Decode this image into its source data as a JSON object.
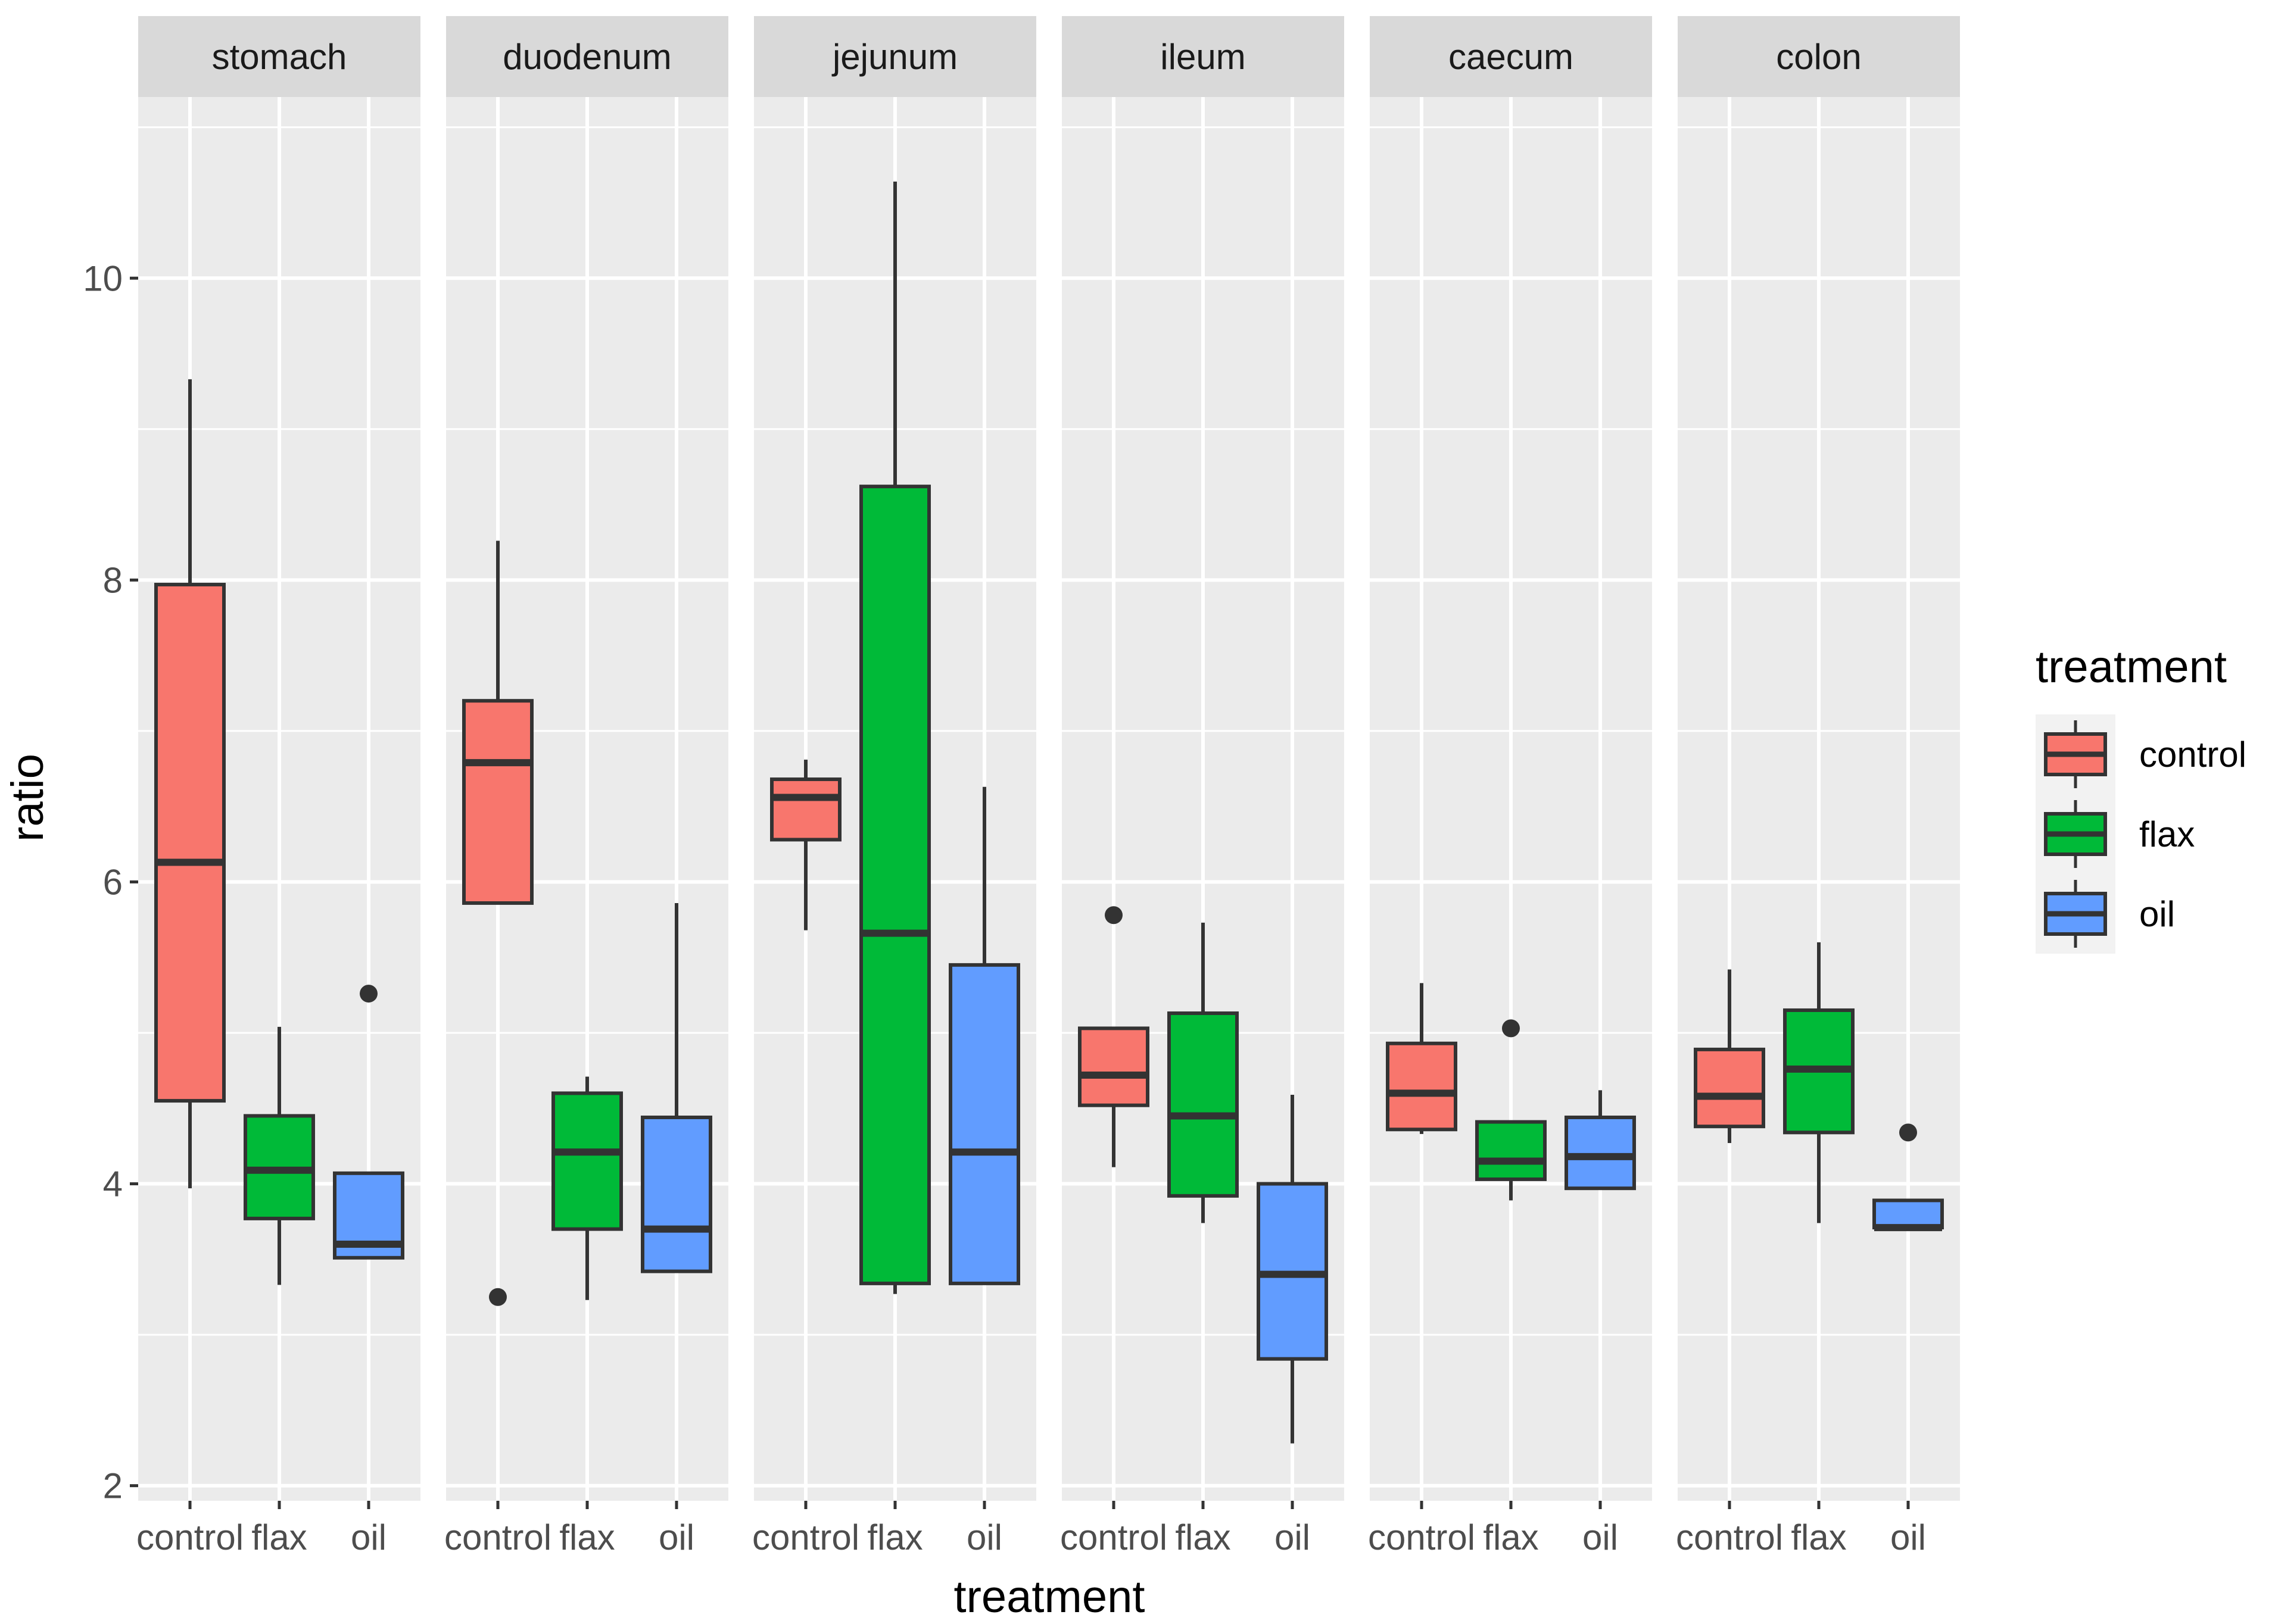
{
  "chart_data": {
    "type": "boxplot",
    "xlabel": "treatment",
    "ylabel": "ratio",
    "ylim": [
      1.9,
      11.2
    ],
    "yticks": [
      2,
      4,
      6,
      8,
      10
    ],
    "grid": true,
    "legend": {
      "title": "treatment",
      "position": "right"
    },
    "categories": [
      "control",
      "flax",
      "oil"
    ],
    "colors": {
      "control": "#F8766D",
      "flax": "#00BA38",
      "oil": "#619CFF"
    },
    "facets": [
      {
        "name": "stomach",
        "boxes": [
          {
            "group": "control",
            "lower": 3.97,
            "q1": 4.55,
            "median": 6.13,
            "q3": 7.97,
            "upper": 9.33,
            "outliers": []
          },
          {
            "group": "flax",
            "lower": 3.33,
            "q1": 3.77,
            "median": 4.09,
            "q3": 4.45,
            "upper": 5.04,
            "outliers": []
          },
          {
            "group": "oil",
            "lower": 3.51,
            "q1": 3.51,
            "median": 3.6,
            "q3": 4.07,
            "upper": 4.07,
            "outliers": [
              5.26
            ]
          }
        ]
      },
      {
        "name": "duodenum",
        "boxes": [
          {
            "group": "control",
            "lower": 5.86,
            "q1": 5.86,
            "median": 6.79,
            "q3": 7.2,
            "upper": 8.26,
            "outliers": [
              3.25
            ]
          },
          {
            "group": "flax",
            "lower": 3.23,
            "q1": 3.7,
            "median": 4.21,
            "q3": 4.6,
            "upper": 4.71,
            "outliers": []
          },
          {
            "group": "oil",
            "lower": 3.42,
            "q1": 3.42,
            "median": 3.7,
            "q3": 4.44,
            "upper": 5.86,
            "outliers": []
          }
        ]
      },
      {
        "name": "jejunum",
        "boxes": [
          {
            "group": "control",
            "lower": 5.68,
            "q1": 6.28,
            "median": 6.56,
            "q3": 6.68,
            "upper": 6.81,
            "outliers": []
          },
          {
            "group": "flax",
            "lower": 3.27,
            "q1": 3.34,
            "median": 5.66,
            "q3": 8.62,
            "upper": 10.64,
            "outliers": []
          },
          {
            "group": "oil",
            "lower": 3.34,
            "q1": 3.34,
            "median": 4.21,
            "q3": 5.45,
            "upper": 6.63,
            "outliers": []
          }
        ]
      },
      {
        "name": "ileum",
        "boxes": [
          {
            "group": "control",
            "lower": 4.11,
            "q1": 4.52,
            "median": 4.72,
            "q3": 5.03,
            "upper": 5.03,
            "outliers": [
              5.78
            ]
          },
          {
            "group": "flax",
            "lower": 3.74,
            "q1": 3.92,
            "median": 4.45,
            "q3": 5.13,
            "upper": 5.73,
            "outliers": []
          },
          {
            "group": "oil",
            "lower": 2.28,
            "q1": 2.84,
            "median": 3.4,
            "q3": 4.0,
            "upper": 4.59,
            "outliers": []
          }
        ]
      },
      {
        "name": "caecum",
        "boxes": [
          {
            "group": "control",
            "lower": 4.33,
            "q1": 4.36,
            "median": 4.6,
            "q3": 4.93,
            "upper": 5.33,
            "outliers": []
          },
          {
            "group": "flax",
            "lower": 3.89,
            "q1": 4.03,
            "median": 4.15,
            "q3": 4.41,
            "upper": 4.41,
            "outliers": [
              5.03
            ]
          },
          {
            "group": "oil",
            "lower": 3.97,
            "q1": 3.97,
            "median": 4.18,
            "q3": 4.44,
            "upper": 4.62,
            "outliers": []
          }
        ]
      },
      {
        "name": "colon",
        "boxes": [
          {
            "group": "control",
            "lower": 4.27,
            "q1": 4.38,
            "median": 4.58,
            "q3": 4.89,
            "upper": 5.42,
            "outliers": []
          },
          {
            "group": "flax",
            "lower": 3.74,
            "q1": 4.34,
            "median": 4.76,
            "q3": 5.15,
            "upper": 5.6,
            "outliers": []
          },
          {
            "group": "oil",
            "lower": 3.71,
            "q1": 3.71,
            "median": 3.71,
            "q3": 3.89,
            "upper": 3.89,
            "outliers": [
              4.34
            ]
          }
        ]
      }
    ]
  }
}
